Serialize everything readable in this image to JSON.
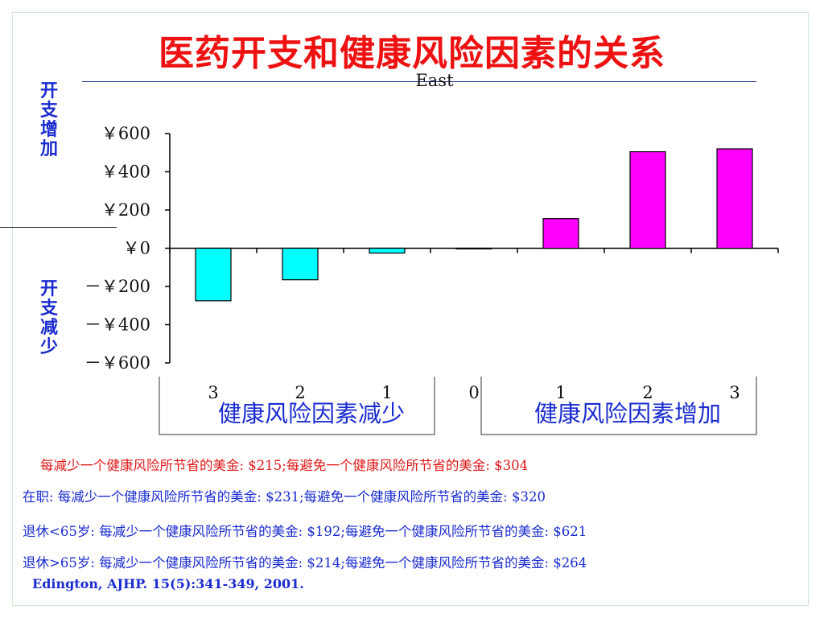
{
  "slide": {
    "title": "医药开支和健康风险因素的关系",
    "y_label_up": "开支增加",
    "y_label_down": "开支减少",
    "group_left": "健康风险因素减少",
    "group_right": "健康风险因素增加",
    "notes": [
      {
        "text": "每减少一个健康风险所节省的美金: $215;每避免一个健康风险所节省的美金: $304",
        "color": "#e01818"
      },
      {
        "text": "在职: 每减少一个健康风险所节省的美金: $231;每避免一个健康风险所节省的美金: $320",
        "color": "#1a2bd0"
      },
      {
        "text": "退休<65岁: 每减少一个健康风险所节省的美金: $192;每避免一个健康风险所节省的美金: $621",
        "color": "#1a2bd0"
      },
      {
        "text": "退休>65岁: 每减少一个健康风险所节省的美金: $214;每避免一个健康风险所节省的美金: $264",
        "color": "#1a2bd0"
      }
    ],
    "citation": "Edington, AJHP. 15(5):341-349, 2001."
  },
  "chart_data": {
    "type": "bar",
    "subtitle": "East",
    "categories": [
      "3",
      "2",
      "1",
      "0",
      "1",
      "2",
      "3"
    ],
    "values": [
      -275,
      -165,
      -25,
      0,
      155,
      505,
      520
    ],
    "colors": [
      "#00ffff",
      "#00ffff",
      "#00ffff",
      "#00ffff",
      "#ff00ff",
      "#ff00ff",
      "#ff00ff"
    ],
    "ylim": [
      -600,
      600
    ],
    "yticks": [
      600,
      400,
      200,
      0,
      -200,
      -400,
      -600
    ],
    "ytick_labels": [
      "￥600",
      "￥400",
      "￥200",
      "￥0",
      "－￥200",
      "－￥400",
      "－￥600"
    ],
    "grid": false,
    "legend": "none"
  }
}
